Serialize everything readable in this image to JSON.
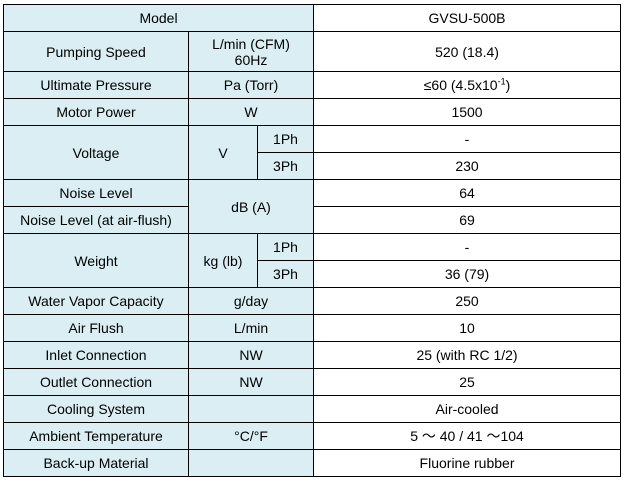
{
  "table": {
    "rows": [
      {
        "label": "Model",
        "value": "GVSU-500B"
      },
      {
        "label": "Pumping Speed",
        "unit": [
          "L/min (CFM)",
          "60Hz"
        ],
        "value": "520 (18.4)"
      },
      {
        "label": "Ultimate Pressure",
        "unit": "Pa (Torr)",
        "value": {
          "main": "≤60 (4.5x10",
          "sup": "-1",
          "end": ")"
        }
      },
      {
        "label": "Motor Power",
        "unit": "W",
        "value": "1500"
      },
      {
        "label": "Voltage",
        "unit": "V",
        "sub": [
          "1Ph",
          "3Ph"
        ],
        "values": [
          "-",
          "230"
        ]
      },
      {
        "label": "Noise Level",
        "unit": "dB (A)",
        "value": "64"
      },
      {
        "label": "Noise Level (at air-flush)",
        "value": "69"
      },
      {
        "label": "Weight",
        "unit": "kg (lb)",
        "sub": [
          "1Ph",
          "3Ph"
        ],
        "values": [
          "-",
          "36 (79)"
        ]
      },
      {
        "label": "Water Vapor Capacity",
        "unit": "g/day",
        "value": "250"
      },
      {
        "label": "Air Flush",
        "unit": "L/min",
        "value": "10"
      },
      {
        "label": "Inlet Connection",
        "unit": "NW",
        "value": "25 (with RC 1/2)"
      },
      {
        "label": "Outlet Connection",
        "unit": "NW",
        "value": "25"
      },
      {
        "label": "Cooling System",
        "value": "Air-cooled"
      },
      {
        "label": "Ambient Temperature",
        "unit": "°C/°F",
        "value": "5 ～ 40 / 41 ～104"
      },
      {
        "label": "Back-up Material",
        "value": "Fluorine rubber"
      }
    ]
  }
}
